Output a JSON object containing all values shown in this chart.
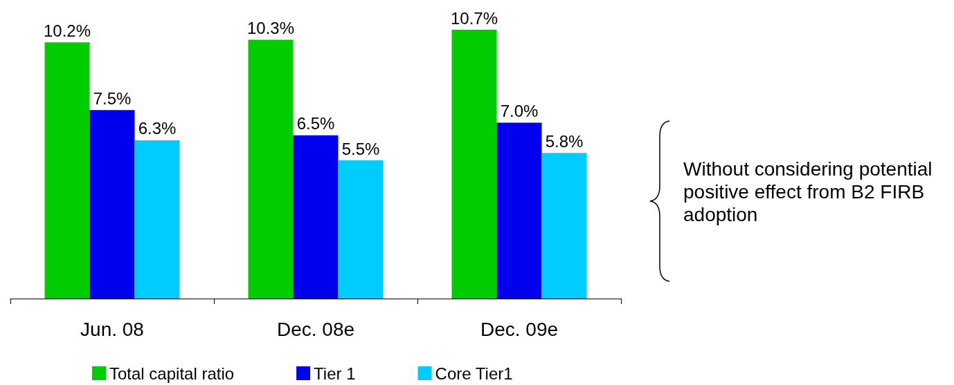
{
  "chart_data": {
    "type": "bar",
    "categories": [
      "Jun. 08",
      "Dec. 08e",
      "Dec. 09e"
    ],
    "series": [
      {
        "name": "Total capital ratio",
        "color": "#00cc00",
        "values": [
          10.2,
          10.3,
          10.7
        ],
        "value_labels": [
          "10.2%",
          "10.3%",
          "10.7%"
        ]
      },
      {
        "name": "Tier 1",
        "color": "#0000ee",
        "values": [
          7.5,
          6.5,
          7.0
        ],
        "value_labels": [
          "7.5%",
          "6.5%",
          "7.0%"
        ]
      },
      {
        "name": "Core Tier1",
        "color": "#00ccff",
        "values": [
          6.3,
          5.5,
          5.8
        ],
        "value_labels": [
          "6.3%",
          "5.5%",
          "5.8%"
        ]
      }
    ],
    "annotations": [
      "Without considering potential positive effect from B2 FIRB adoption"
    ],
    "legend": "bottom",
    "grid": false
  }
}
